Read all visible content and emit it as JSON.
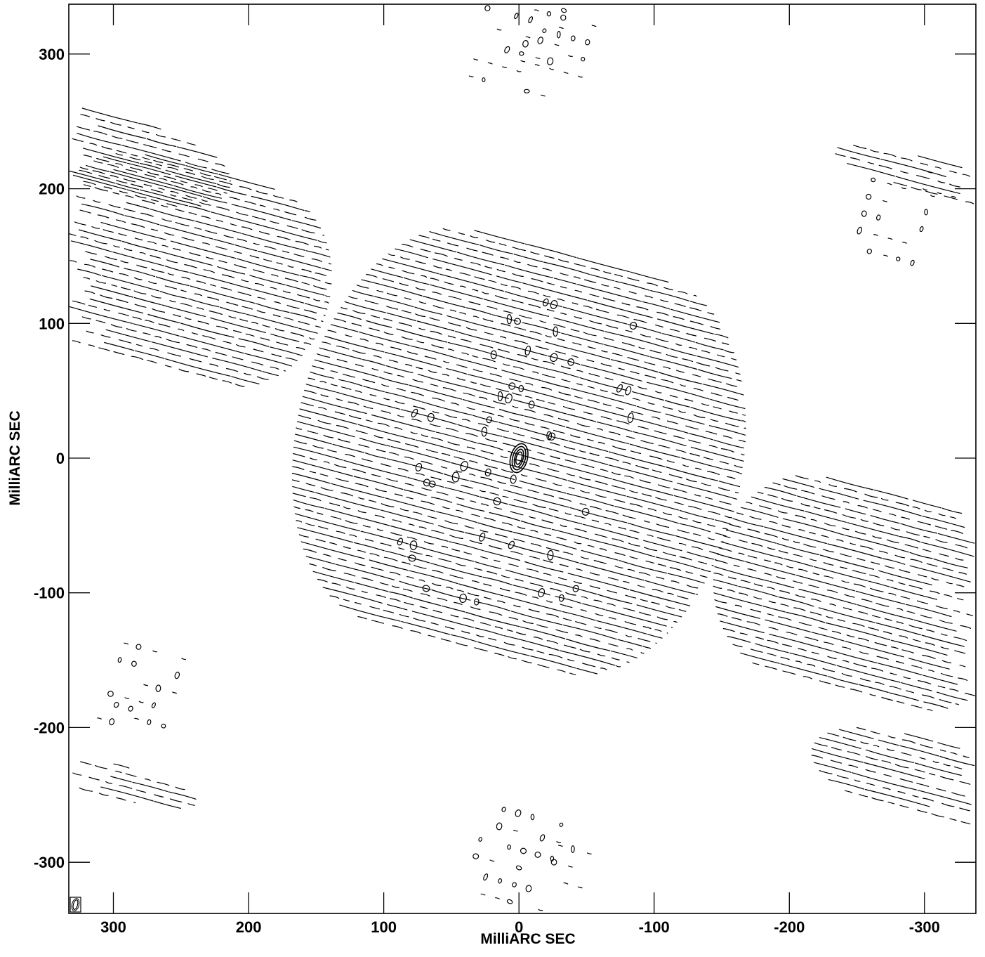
{
  "chart_data": {
    "type": "contour",
    "xlabel": "MilliARC SEC",
    "ylabel": "MilliARC SEC",
    "xlim": [
      333,
      -338
    ],
    "ylim": [
      -338,
      337
    ],
    "x_ticks": [
      300,
      200,
      100,
      0,
      -100,
      -200,
      -300
    ],
    "y_ticks": [
      300,
      200,
      100,
      0,
      -100,
      -200,
      -300
    ],
    "x_tick_labels": [
      "300",
      "200",
      "100",
      "0",
      "-100",
      "-200",
      "-300"
    ],
    "y_tick_labels": [
      "300",
      "200",
      "100",
      "0",
      "-100",
      "-200",
      "-300"
    ],
    "peak": {
      "x": 0,
      "y": 0
    },
    "fringe_position_angle_deg": 15,
    "fringe_spacing_mas": 9.5,
    "sidelobe_regions": [
      {
        "center": [
          0,
          5
        ],
        "half_length": 165,
        "half_width": 150,
        "type": "main"
      },
      {
        "center": [
          248,
          140
        ],
        "half_length": 110,
        "half_width": 75,
        "type": "fringe"
      },
      {
        "center": [
          -258,
          -100
        ],
        "half_length": 115,
        "half_width": 75,
        "type": "fringe"
      },
      {
        "center": [
          320,
          230
        ],
        "half_length": 110,
        "half_width": 28,
        "type": "fringe"
      },
      {
        "center": [
          -328,
          -245
        ],
        "half_length": 115,
        "half_width": 28,
        "type": "fringe"
      },
      {
        "center": [
          0,
          305
        ],
        "half_length": 30,
        "half_width": 35,
        "type": "dots"
      },
      {
        "center": [
          -30,
          305
        ],
        "half_length": 25,
        "half_width": 22,
        "type": "dots"
      },
      {
        "center": [
          0,
          -300
        ],
        "half_length": 32,
        "half_width": 35,
        "type": "dots"
      },
      {
        "center": [
          -275,
          170
        ],
        "half_length": 22,
        "half_width": 32,
        "type": "dots"
      },
      {
        "center": [
          -310,
          195
        ],
        "half_length": 12,
        "half_width": 15,
        "type": "dots"
      },
      {
        "center": [
          278,
          -170
        ],
        "half_length": 22,
        "half_width": 28,
        "type": "dots"
      },
      {
        "center": [
          300,
          -195
        ],
        "half_length": 12,
        "half_width": 12,
        "type": "dots"
      },
      {
        "center": [
          -37,
          -305
        ],
        "half_length": 12,
        "half_width": 15,
        "type": "dots"
      },
      {
        "center": [
          -340,
          200
        ],
        "half_length": 110,
        "half_width": 12,
        "type": "edge"
      },
      {
        "center": [
          335,
          -230
        ],
        "half_length": 100,
        "half_width": 12,
        "type": "edge"
      }
    ]
  }
}
